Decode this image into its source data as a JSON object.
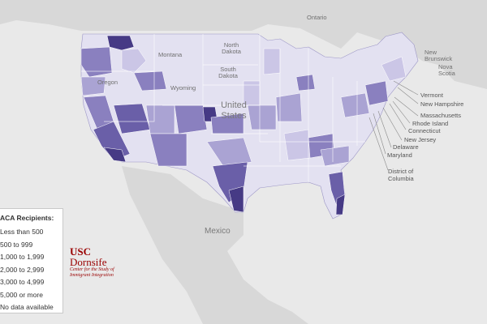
{
  "legend": {
    "title": "ACA Recipients:",
    "items": [
      {
        "label": "Less than 500",
        "color": "#e5e3f2"
      },
      {
        "label": "500 to 999",
        "color": "#cbc6e6"
      },
      {
        "label": "1,000 to 1,999",
        "color": "#aaa3d3"
      },
      {
        "label": "2,000 to 2,999",
        "color": "#8a80bf"
      },
      {
        "label": "3,000 to 4,999",
        "color": "#6a5fa8"
      },
      {
        "label": "5,000 or more",
        "color": "#463a85"
      },
      {
        "label": "No data available",
        "color": "#ffffff"
      }
    ]
  },
  "map_labels": {
    "ontario": "Ontario",
    "montana": "Montana",
    "north_dakota": "North Dakota",
    "south_dakota": "South Dakota",
    "wyoming": "Wyoming",
    "oregon": "Oregon",
    "united_states": "United States",
    "mexico": "Mexico",
    "new_brunswick": "New Brunswick",
    "nova_scotia": "Nova Scotia"
  },
  "northeast_labels": {
    "vermont": "Vermont",
    "new_hampshire": "New Hampshire",
    "massachusetts": "Massachusetts",
    "rhode_island": "Rhode Island",
    "connecticut": "Connecticut",
    "new_jersey": "New Jersey",
    "delaware": "Delaware",
    "maryland": "Maryland",
    "district_of_columbia": "District of Columbia"
  },
  "branding": {
    "usc": "USC",
    "dornsife": "Dornsife",
    "center_line1": "Center for the Study of",
    "center_line2": "Immigrant Integration"
  },
  "colors": {
    "land": "#d6d6d6",
    "water": "#e9e9e9"
  }
}
